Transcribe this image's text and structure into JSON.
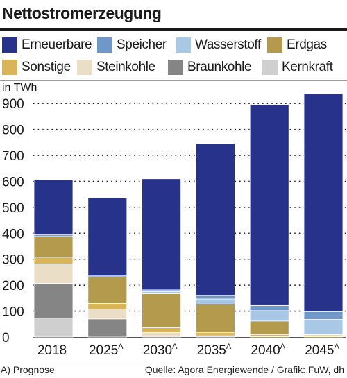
{
  "title": "Nettostromerzeugung",
  "legend": [
    {
      "label": "Erneuerbare",
      "color": "#27338a"
    },
    {
      "label": "Speicher",
      "color": "#6f98c9"
    },
    {
      "label": "Wasserstoff",
      "color": "#a9c8e6"
    },
    {
      "label": "Erdgas",
      "color": "#b39a4c"
    },
    {
      "label": "Sonstige",
      "color": "#d9b559"
    },
    {
      "label": "Steinkohle",
      "color": "#eadfc6"
    },
    {
      "label": "Braunkohle",
      "color": "#858585"
    },
    {
      "label": "Kernkraft",
      "color": "#cfcfcf"
    }
  ],
  "unit_label": "in TWh",
  "footer": {
    "note": "A) Prognose",
    "source": "Quelle: Agora Energiewende / Grafik: FuW, dh"
  },
  "chart_data": {
    "type": "bar",
    "stacked": true,
    "title": "Nettostromerzeugung",
    "ylabel": "in TWh",
    "ylim": [
      0,
      930
    ],
    "yticks": [
      0,
      100,
      200,
      300,
      400,
      500,
      600,
      700,
      800,
      900
    ],
    "grid": true,
    "legend_position": "top",
    "categories": [
      "2018",
      "2025",
      "2030",
      "2035",
      "2040",
      "2045"
    ],
    "category_superscripts": [
      "",
      "A",
      "A",
      "A",
      "A",
      "A"
    ],
    "series": [
      {
        "name": "Kernkraft",
        "color": "#cfcfcf",
        "values": [
          73,
          0,
          0,
          0,
          0,
          0
        ]
      },
      {
        "name": "Braunkohle",
        "color": "#858585",
        "values": [
          134,
          70,
          0,
          0,
          0,
          0
        ]
      },
      {
        "name": "Steinkohle",
        "color": "#eadfc6",
        "values": [
          75,
          38,
          18,
          5,
          2,
          2
        ]
      },
      {
        "name": "Sonstige",
        "color": "#d9b559",
        "values": [
          26,
          22,
          18,
          12,
          8,
          6
        ]
      },
      {
        "name": "Erdgas",
        "color": "#b39a4c",
        "values": [
          80,
          102,
          131,
          110,
          52,
          2
        ]
      },
      {
        "name": "Wasserstoff",
        "color": "#a9c8e6",
        "values": [
          0,
          0,
          8,
          20,
          40,
          58
        ]
      },
      {
        "name": "Speicher",
        "color": "#6f98c9",
        "values": [
          7,
          4,
          7,
          13,
          20,
          30
        ]
      },
      {
        "name": "Erneuerbare",
        "color": "#27338a",
        "values": [
          211,
          302,
          428,
          586,
          773,
          840
        ]
      }
    ]
  }
}
